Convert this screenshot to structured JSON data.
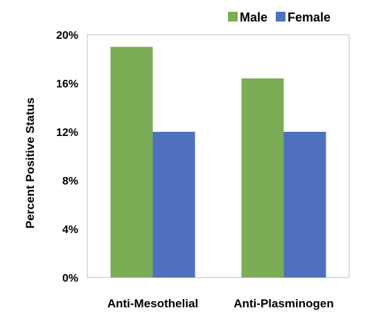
{
  "chart_data": {
    "type": "bar",
    "title": "",
    "xlabel": "",
    "ylabel": "Percent Positive Status",
    "categories": [
      "Anti-Mesothelial",
      "Anti-Plasminogen"
    ],
    "series": [
      {
        "name": "Male",
        "values": [
          19.0,
          16.4
        ],
        "color": "#7cac55"
      },
      {
        "name": "Female",
        "values": [
          12.0,
          12.0
        ],
        "color": "#4f71be"
      }
    ],
    "ylim": [
      0,
      20
    ],
    "yticks": [
      "0%",
      "4%",
      "8%",
      "12%",
      "16%",
      "20%"
    ],
    "ytick_values": [
      0,
      4,
      8,
      12,
      16,
      20
    ],
    "grid": false,
    "legend_position": "top-right"
  }
}
